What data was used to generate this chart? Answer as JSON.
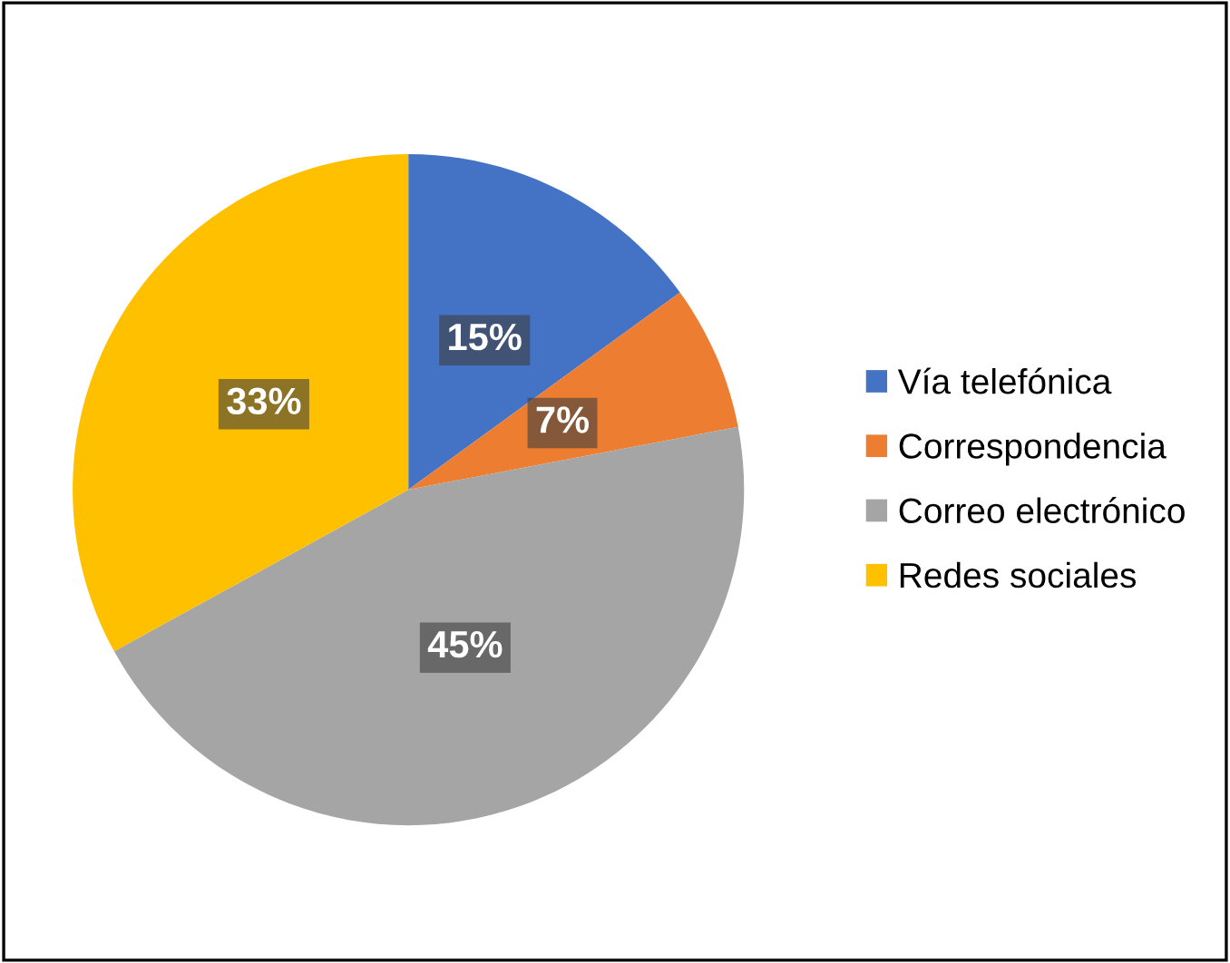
{
  "chart_data": {
    "type": "pie",
    "categories": [
      "Vía telefónica",
      "Correspondencia",
      "Correo electrónico",
      "Redes sociales"
    ],
    "values": [
      15,
      7,
      45,
      33
    ],
    "colors": [
      "#4472c4",
      "#ed7d31",
      "#a5a5a5",
      "#ffc000"
    ],
    "value_labels": [
      "15%",
      "7%",
      "45%",
      "33%"
    ],
    "legend": "right"
  }
}
